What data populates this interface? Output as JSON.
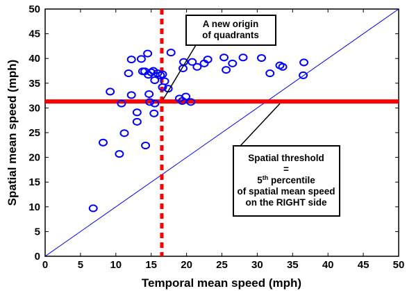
{
  "chart_data": {
    "type": "scatter",
    "xlabel": "Temporal mean speed (mph)",
    "ylabel": "Spatial mean speed (mph)",
    "xlim": [
      0,
      50
    ],
    "ylim": [
      0,
      50
    ],
    "xticks": [
      "0",
      "5",
      "10",
      "15",
      "20",
      "25",
      "30",
      "35",
      "40",
      "45",
      "50"
    ],
    "yticks": [
      "0",
      "5",
      "10",
      "15",
      "20",
      "25",
      "30",
      "35",
      "40",
      "45",
      "50"
    ],
    "grid": false,
    "marker": "circle",
    "colors": {
      "points": "#0000ff",
      "diagonal": "#0000ff",
      "threshold": "#ff0000"
    },
    "diagonal": {
      "from": [
        0,
        0
      ],
      "to": [
        50,
        50
      ]
    },
    "vertical_threshold_x": 16.5,
    "horizontal_threshold_y": 31.3,
    "points": [
      [
        6.8,
        9.7
      ],
      [
        8.2,
        23.0
      ],
      [
        9.2,
        33.3
      ],
      [
        10.5,
        20.7
      ],
      [
        10.8,
        30.9
      ],
      [
        11.2,
        24.9
      ],
      [
        11.8,
        37.0
      ],
      [
        12.2,
        32.6
      ],
      [
        12.2,
        39.8
      ],
      [
        13.0,
        27.2
      ],
      [
        13.0,
        29.1
      ],
      [
        13.6,
        39.9
      ],
      [
        13.8,
        37.4
      ],
      [
        14.1,
        37.4
      ],
      [
        14.2,
        22.4
      ],
      [
        14.5,
        41.0
      ],
      [
        14.6,
        36.7
      ],
      [
        14.7,
        32.8
      ],
      [
        14.8,
        31.2
      ],
      [
        15.0,
        37.2
      ],
      [
        15.3,
        37.5
      ],
      [
        15.4,
        28.9
      ],
      [
        15.5,
        30.9
      ],
      [
        15.5,
        35.6
      ],
      [
        15.9,
        37.0
      ],
      [
        16.3,
        36.6
      ],
      [
        16.6,
        36.8
      ],
      [
        16.6,
        34.2
      ],
      [
        16.9,
        35.4
      ],
      [
        17.4,
        33.9
      ],
      [
        17.8,
        41.2
      ],
      [
        19.0,
        31.9
      ],
      [
        19.4,
        31.4
      ],
      [
        19.5,
        38.0
      ],
      [
        19.6,
        39.3
      ],
      [
        19.9,
        32.3
      ],
      [
        20.6,
        31.2
      ],
      [
        20.8,
        39.3
      ],
      [
        21.5,
        38.3
      ],
      [
        22.5,
        39.0
      ],
      [
        23.0,
        39.8
      ],
      [
        25.3,
        40.2
      ],
      [
        25.6,
        37.7
      ],
      [
        26.5,
        39.0
      ],
      [
        28.0,
        40.2
      ],
      [
        30.6,
        40.1
      ],
      [
        31.8,
        37.0
      ],
      [
        33.2,
        38.6
      ],
      [
        33.6,
        38.3
      ],
      [
        36.5,
        36.6
      ],
      [
        36.6,
        39.2
      ]
    ],
    "annotations": [
      {
        "lines": [
          "A new origin",
          "of quadrants"
        ]
      },
      {
        "lines": [
          "Spatial threshold",
          "=",
          "5th percentile",
          "of spatial mean speed",
          "on the RIGHT side"
        ]
      }
    ]
  }
}
